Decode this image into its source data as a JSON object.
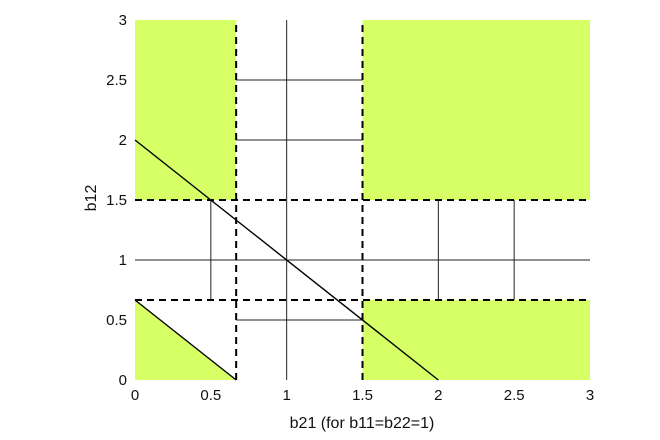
{
  "chart_data": {
    "type": "area",
    "xlabel": "b21 (for b11=b22=1)",
    "ylabel": "b12",
    "xlim": [
      0,
      3
    ],
    "ylim": [
      0,
      3
    ],
    "x_ticks": [
      0,
      0.5,
      1,
      1.5,
      2,
      2.5,
      3
    ],
    "x_tick_labels": [
      "0",
      "0.5",
      "1",
      "1.5",
      "2",
      "2.5",
      "3"
    ],
    "y_ticks": [
      0,
      0.5,
      1,
      1.5,
      2,
      2.5,
      3
    ],
    "y_tick_labels": [
      "0",
      "0.5",
      "1",
      "1.5",
      "2",
      "2.5",
      "3"
    ],
    "grid": true,
    "fill_color": "#d7ff66",
    "regions": [
      {
        "polygon": [
          [
            0,
            1.5
          ],
          [
            0.667,
            1.5
          ],
          [
            0.667,
            3
          ],
          [
            0,
            3
          ]
        ]
      },
      {
        "polygon": [
          [
            1.5,
            1.5
          ],
          [
            3,
            1.5
          ],
          [
            3,
            3
          ],
          [
            1.5,
            3
          ]
        ]
      },
      {
        "polygon": [
          [
            1.5,
            0
          ],
          [
            3,
            0
          ],
          [
            3,
            0.667
          ],
          [
            1.5,
            0.667
          ]
        ]
      },
      {
        "polygon": [
          [
            0,
            0
          ],
          [
            0.667,
            0
          ],
          [
            0,
            0.667
          ]
        ]
      }
    ],
    "dashed_lines": [
      {
        "orientation": "vertical",
        "value": 0.667
      },
      {
        "orientation": "vertical",
        "value": 1.5
      },
      {
        "orientation": "horizontal",
        "value": 1.5
      },
      {
        "orientation": "horizontal",
        "value": 0.667
      }
    ],
    "lines": [
      {
        "points": [
          [
            0,
            2
          ],
          [
            2,
            0
          ]
        ]
      },
      {
        "points": [
          [
            0,
            0.667
          ],
          [
            0.667,
            0
          ]
        ]
      }
    ]
  }
}
